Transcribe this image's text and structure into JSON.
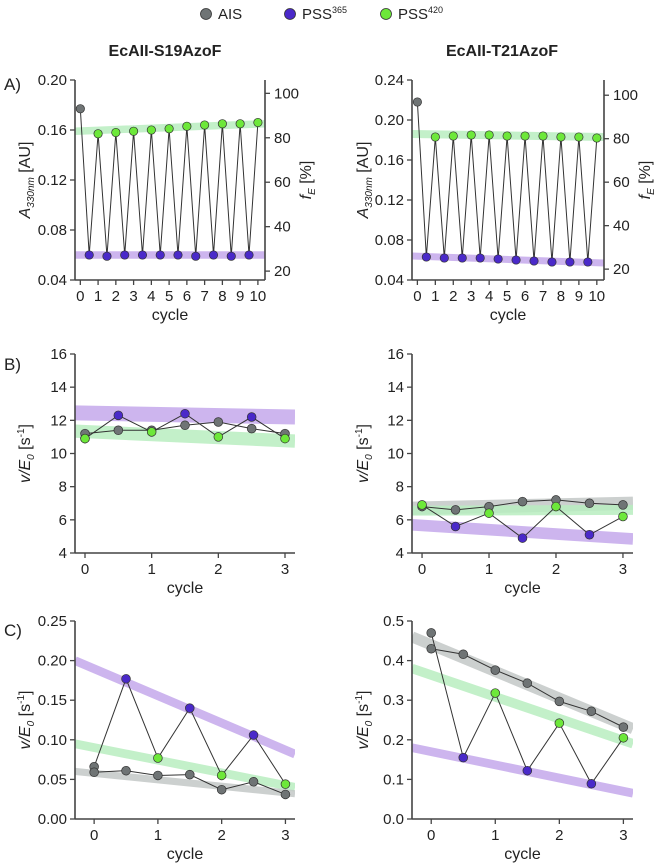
{
  "legend": [
    {
      "label": "AIS",
      "color": "#6f7475"
    },
    {
      "label": "PSS",
      "sup": "365",
      "color": "#4a29c9"
    },
    {
      "label": "PSS",
      "sup": "420",
      "color": "#6de83a"
    }
  ],
  "column_titles": [
    "EcAII-S19AzoF",
    "EcAII-T21AzoF"
  ],
  "panel_labels": [
    "A)",
    "B)",
    "C)"
  ],
  "axis_text": {
    "A_left_main": "A",
    "A_left_sub": "330nm",
    "A_left_unit": " [AU]",
    "A_right_main": "f",
    "A_right_sub": "E",
    "A_right_unit": " [%]",
    "v_main": "v/E",
    "v_sub": "0",
    "v_unit_pre": " [s",
    "v_unit_sup": "-1",
    "v_unit_post": "]",
    "xlabel": "cycle"
  },
  "colors": {
    "ais": "#6f7475",
    "pss365": "#4a29c9",
    "pss420": "#6de83a",
    "band_purple": "#c5a9ec",
    "band_green": "#b9eec0",
    "band_gray": "#c4c8c7"
  },
  "chart_data": [
    {
      "id": "A1",
      "type": "line",
      "title": "EcAII-S19AzoF",
      "xlabel": "cycle",
      "ylabel": "A330nm [AU]",
      "y2label": "fE [%]",
      "xlim": [
        -0.3,
        10.4
      ],
      "ylim": [
        0.04,
        0.2
      ],
      "y2lim": [
        16,
        106
      ],
      "xticks": [
        0,
        1,
        2,
        3,
        4,
        5,
        6,
        7,
        8,
        9,
        10
      ],
      "yticks": [
        0.04,
        0.08,
        0.12,
        0.16,
        0.2
      ],
      "yticklabels": [
        "0.04",
        "0.08",
        "0.12",
        "0.16",
        "0.20"
      ],
      "y2ticks": [
        20,
        40,
        60,
        80,
        100
      ],
      "ais": [
        {
          "x": 0,
          "y": 0.177
        }
      ],
      "zigzag": [
        0.177,
        0.06,
        0.157,
        0.059,
        0.158,
        0.06,
        0.159,
        0.06,
        0.16,
        0.06,
        0.161,
        0.06,
        0.163,
        0.059,
        0.164,
        0.06,
        0.165,
        0.059,
        0.165,
        0.06,
        0.166
      ],
      "zigzag_x": [
        0,
        0.5,
        1,
        1.5,
        2,
        2.5,
        3,
        3.5,
        4,
        4.5,
        5,
        5.5,
        6,
        6.5,
        7,
        7.5,
        8,
        8.5,
        9,
        9.5,
        10
      ],
      "pss365": [
        {
          "x": 0.5,
          "y": 0.06
        },
        {
          "x": 1.5,
          "y": 0.059
        },
        {
          "x": 2.5,
          "y": 0.06
        },
        {
          "x": 3.5,
          "y": 0.06
        },
        {
          "x": 4.5,
          "y": 0.06
        },
        {
          "x": 5.5,
          "y": 0.06
        },
        {
          "x": 6.5,
          "y": 0.059
        },
        {
          "x": 7.5,
          "y": 0.06
        },
        {
          "x": 8.5,
          "y": 0.059
        },
        {
          "x": 9.5,
          "y": 0.06
        }
      ],
      "pss420": [
        {
          "x": 1,
          "y": 0.157
        },
        {
          "x": 2,
          "y": 0.158
        },
        {
          "x": 3,
          "y": 0.159
        },
        {
          "x": 4,
          "y": 0.16
        },
        {
          "x": 5,
          "y": 0.161
        },
        {
          "x": 6,
          "y": 0.163
        },
        {
          "x": 7,
          "y": 0.164
        },
        {
          "x": 8,
          "y": 0.165
        },
        {
          "x": 9,
          "y": 0.165
        },
        {
          "x": 10,
          "y": 0.166
        }
      ],
      "bands": [
        {
          "color": "band_purple",
          "from": [
            -0.3,
            0.06
          ],
          "to": [
            10.4,
            0.06
          ],
          "width": 0.006
        },
        {
          "color": "band_green",
          "from": [
            -0.3,
            0.159
          ],
          "to": [
            10.4,
            0.165
          ],
          "width": 0.006
        }
      ]
    },
    {
      "id": "A2",
      "type": "line",
      "title": "EcAII-T21AzoF",
      "xlabel": "cycle",
      "ylabel": "A330nm [AU]",
      "y2label": "fE [%]",
      "xlim": [
        -0.3,
        10.4
      ],
      "ylim": [
        0.04,
        0.24
      ],
      "y2lim": [
        15,
        107
      ],
      "xticks": [
        0,
        1,
        2,
        3,
        4,
        5,
        6,
        7,
        8,
        9,
        10
      ],
      "yticks": [
        0.04,
        0.08,
        0.12,
        0.16,
        0.2,
        0.24
      ],
      "yticklabels": [
        "0.04",
        "0.08",
        "0.12",
        "0.16",
        "0.20",
        "0.24"
      ],
      "y2ticks": [
        20,
        40,
        60,
        80,
        100
      ],
      "ais": [
        {
          "x": 0,
          "y": 0.218
        }
      ],
      "zigzag": [
        0.218,
        0.063,
        0.183,
        0.062,
        0.184,
        0.062,
        0.185,
        0.062,
        0.185,
        0.061,
        0.184,
        0.06,
        0.184,
        0.059,
        0.184,
        0.058,
        0.183,
        0.058,
        0.183,
        0.058,
        0.182
      ],
      "zigzag_x": [
        0,
        0.5,
        1,
        1.5,
        2,
        2.5,
        3,
        3.5,
        4,
        4.5,
        5,
        5.5,
        6,
        6.5,
        7,
        7.5,
        8,
        8.5,
        9,
        9.5,
        10
      ],
      "pss365": [
        {
          "x": 0.5,
          "y": 0.063
        },
        {
          "x": 1.5,
          "y": 0.062
        },
        {
          "x": 2.5,
          "y": 0.062
        },
        {
          "x": 3.5,
          "y": 0.062
        },
        {
          "x": 4.5,
          "y": 0.061
        },
        {
          "x": 5.5,
          "y": 0.06
        },
        {
          "x": 6.5,
          "y": 0.059
        },
        {
          "x": 7.5,
          "y": 0.058
        },
        {
          "x": 8.5,
          "y": 0.058
        },
        {
          "x": 9.5,
          "y": 0.058
        }
      ],
      "pss420": [
        {
          "x": 1,
          "y": 0.183
        },
        {
          "x": 2,
          "y": 0.184
        },
        {
          "x": 3,
          "y": 0.185
        },
        {
          "x": 4,
          "y": 0.185
        },
        {
          "x": 5,
          "y": 0.184
        },
        {
          "x": 6,
          "y": 0.184
        },
        {
          "x": 7,
          "y": 0.184
        },
        {
          "x": 8,
          "y": 0.183
        },
        {
          "x": 9,
          "y": 0.183
        },
        {
          "x": 10,
          "y": 0.182
        }
      ],
      "bands": [
        {
          "color": "band_purple",
          "from": [
            -0.3,
            0.064
          ],
          "to": [
            10.4,
            0.057
          ],
          "width": 0.007
        },
        {
          "color": "band_green",
          "from": [
            -0.3,
            0.186
          ],
          "to": [
            10.4,
            0.183
          ],
          "width": 0.008
        }
      ]
    },
    {
      "id": "B1",
      "type": "line",
      "xlabel": "cycle",
      "ylabel": "v/E0 [s-1]",
      "xlim": [
        -0.15,
        3.15
      ],
      "ylim": [
        4,
        16
      ],
      "xticks": [
        0,
        1,
        2,
        3
      ],
      "yticks": [
        4,
        6,
        8,
        10,
        12,
        14,
        16
      ],
      "yticklabels": [
        "4",
        "6",
        "8",
        "10",
        "12",
        "14",
        "16"
      ],
      "ais": [
        {
          "x": 0,
          "y": 11.2
        },
        {
          "x": 0.5,
          "y": 11.4
        },
        {
          "x": 1,
          "y": 11.4
        },
        {
          "x": 1.5,
          "y": 11.7
        },
        {
          "x": 2,
          "y": 11.9
        },
        {
          "x": 2.5,
          "y": 11.5
        },
        {
          "x": 3,
          "y": 11.2
        }
      ],
      "zigzag": [
        10.9,
        12.3,
        11.3,
        12.4,
        11.0,
        12.2,
        10.9
      ],
      "zigzag_x": [
        0,
        0.5,
        1,
        1.5,
        2,
        2.5,
        3
      ],
      "pss365": [
        {
          "x": 0.5,
          "y": 12.3
        },
        {
          "x": 1.5,
          "y": 12.4
        },
        {
          "x": 2.5,
          "y": 12.2
        }
      ],
      "pss420": [
        {
          "x": 0,
          "y": 10.9
        },
        {
          "x": 1,
          "y": 11.3
        },
        {
          "x": 2,
          "y": 11.0
        },
        {
          "x": 3,
          "y": 10.9
        }
      ],
      "extra_ais": [
        {
          "x": 0,
          "y": 10.9
        }
      ],
      "bands": [
        {
          "color": "band_purple",
          "from": [
            -0.15,
            12.45
          ],
          "to": [
            3.15,
            12.2
          ],
          "width": 0.9
        },
        {
          "color": "band_green",
          "from": [
            -0.15,
            11.35
          ],
          "to": [
            3.15,
            10.75
          ],
          "width": 0.8
        }
      ]
    },
    {
      "id": "B2",
      "type": "line",
      "xlabel": "cycle",
      "ylabel": "v/E0 [s-1]",
      "xlim": [
        -0.15,
        3.15
      ],
      "ylim": [
        4,
        16
      ],
      "xticks": [
        0,
        1,
        2,
        3
      ],
      "yticks": [
        4,
        6,
        8,
        10,
        12,
        14,
        16
      ],
      "yticklabels": [
        "4",
        "6",
        "8",
        "10",
        "12",
        "14",
        "16"
      ],
      "ais": [
        {
          "x": 0,
          "y": 6.8
        },
        {
          "x": 0.5,
          "y": 6.6
        },
        {
          "x": 1,
          "y": 6.8
        },
        {
          "x": 1.5,
          "y": 7.1
        },
        {
          "x": 2,
          "y": 7.2
        },
        {
          "x": 2.5,
          "y": 7.0
        },
        {
          "x": 3,
          "y": 6.9
        }
      ],
      "zigzag": [
        6.9,
        5.6,
        6.4,
        4.9,
        6.8,
        5.1,
        6.2
      ],
      "zigzag_x": [
        0,
        0.5,
        1,
        1.5,
        2,
        2.5,
        3
      ],
      "pss365": [
        {
          "x": 0.5,
          "y": 5.6
        },
        {
          "x": 1.5,
          "y": 4.9
        },
        {
          "x": 2.5,
          "y": 5.1
        }
      ],
      "pss420": [
        {
          "x": 0,
          "y": 6.9
        },
        {
          "x": 1,
          "y": 6.4
        },
        {
          "x": 2,
          "y": 6.8
        },
        {
          "x": 3,
          "y": 6.2
        }
      ],
      "bands": [
        {
          "color": "band_gray",
          "from": [
            -0.15,
            6.7
          ],
          "to": [
            3.15,
            7.0
          ],
          "width": 0.8
        },
        {
          "color": "band_green",
          "from": [
            -0.15,
            6.55
          ],
          "to": [
            3.15,
            6.6
          ],
          "width": 0.6
        },
        {
          "color": "band_purple",
          "from": [
            -0.15,
            5.7
          ],
          "to": [
            3.15,
            4.85
          ],
          "width": 0.7
        }
      ]
    },
    {
      "id": "C1",
      "type": "line",
      "xlabel": "cycle",
      "ylabel": "v/E0 [s-1]",
      "xlim": [
        -0.3,
        3.15
      ],
      "ylim": [
        0,
        0.25
      ],
      "xticks": [
        0,
        1,
        2,
        3
      ],
      "yticks": [
        0,
        0.05,
        0.1,
        0.15,
        0.2,
        0.25
      ],
      "yticklabels": [
        "0.00",
        "0.05",
        "0.10",
        "0.15",
        "0.20",
        "0.25"
      ],
      "ais": [
        {
          "x": 0,
          "y": 0.066
        },
        {
          "x": 0,
          "y": 0.059
        },
        {
          "x": 0.5,
          "y": 0.061
        },
        {
          "x": 1,
          "y": 0.055
        },
        {
          "x": 1.5,
          "y": 0.056
        },
        {
          "x": 2,
          "y": 0.037
        },
        {
          "x": 2.5,
          "y": 0.047
        },
        {
          "x": 3,
          "y": 0.031
        }
      ],
      "ais_line_x": [
        0,
        0.5,
        1,
        1.5,
        2,
        2.5,
        3
      ],
      "ais_line_y": [
        0.059,
        0.061,
        0.055,
        0.056,
        0.037,
        0.047,
        0.031
      ],
      "zigzag": [
        0.066,
        0.177,
        0.077,
        0.14,
        0.055,
        0.106,
        0.044
      ],
      "zigzag_x": [
        0,
        0.5,
        1,
        1.5,
        2,
        2.5,
        3
      ],
      "pss365": [
        {
          "x": 0.5,
          "y": 0.177
        },
        {
          "x": 1.5,
          "y": 0.14
        },
        {
          "x": 2.5,
          "y": 0.106
        }
      ],
      "pss420": [
        {
          "x": 1,
          "y": 0.077
        },
        {
          "x": 2,
          "y": 0.055
        },
        {
          "x": 3,
          "y": 0.044
        }
      ],
      "bands": [
        {
          "color": "band_purple",
          "from": [
            -0.3,
            0.2
          ],
          "to": [
            3.15,
            0.082
          ],
          "width": 0.011
        },
        {
          "color": "band_green",
          "from": [
            -0.3,
            0.095
          ],
          "to": [
            3.15,
            0.04
          ],
          "width": 0.011
        },
        {
          "color": "band_gray",
          "from": [
            -0.3,
            0.06
          ],
          "to": [
            3.15,
            0.032
          ],
          "width": 0.009
        }
      ]
    },
    {
      "id": "C2",
      "type": "line",
      "xlabel": "cycle",
      "ylabel": "v/E0 [s-1]",
      "xlim": [
        -0.3,
        3.15
      ],
      "ylim": [
        0,
        0.5
      ],
      "xticks": [
        0,
        1,
        2,
        3
      ],
      "yticks": [
        0,
        0.1,
        0.2,
        0.3,
        0.4,
        0.5
      ],
      "yticklabels": [
        "0.0",
        "0.1",
        "0.2",
        "0.3",
        "0.4",
        "0.5"
      ],
      "ais": [
        {
          "x": 0,
          "y": 0.47
        },
        {
          "x": 0,
          "y": 0.43
        },
        {
          "x": 0.5,
          "y": 0.416
        },
        {
          "x": 1,
          "y": 0.376
        },
        {
          "x": 1.5,
          "y": 0.343
        },
        {
          "x": 2,
          "y": 0.297
        },
        {
          "x": 2.5,
          "y": 0.272
        },
        {
          "x": 3,
          "y": 0.232
        }
      ],
      "ais_line_x": [
        0,
        0.5,
        1,
        1.5,
        2,
        2.5,
        3
      ],
      "ais_line_y": [
        0.43,
        0.416,
        0.376,
        0.343,
        0.297,
        0.272,
        0.232
      ],
      "zigzag": [
        0.47,
        0.155,
        0.318,
        0.122,
        0.242,
        0.089,
        0.205
      ],
      "zigzag_x": [
        0,
        0.5,
        1,
        1.5,
        2,
        2.5,
        3
      ],
      "pss365": [
        {
          "x": 0.5,
          "y": 0.155
        },
        {
          "x": 1.5,
          "y": 0.122
        },
        {
          "x": 2.5,
          "y": 0.089
        }
      ],
      "pss420": [
        {
          "x": 1,
          "y": 0.318
        },
        {
          "x": 2,
          "y": 0.242
        },
        {
          "x": 3,
          "y": 0.205
        }
      ],
      "bands": [
        {
          "color": "band_gray",
          "from": [
            -0.3,
            0.46
          ],
          "to": [
            3.15,
            0.228
          ],
          "width": 0.028
        },
        {
          "color": "band_green",
          "from": [
            -0.3,
            0.38
          ],
          "to": [
            3.15,
            0.19
          ],
          "width": 0.024
        },
        {
          "color": "band_purple",
          "from": [
            -0.3,
            0.18
          ],
          "to": [
            3.15,
            0.065
          ],
          "width": 0.022
        }
      ]
    }
  ]
}
